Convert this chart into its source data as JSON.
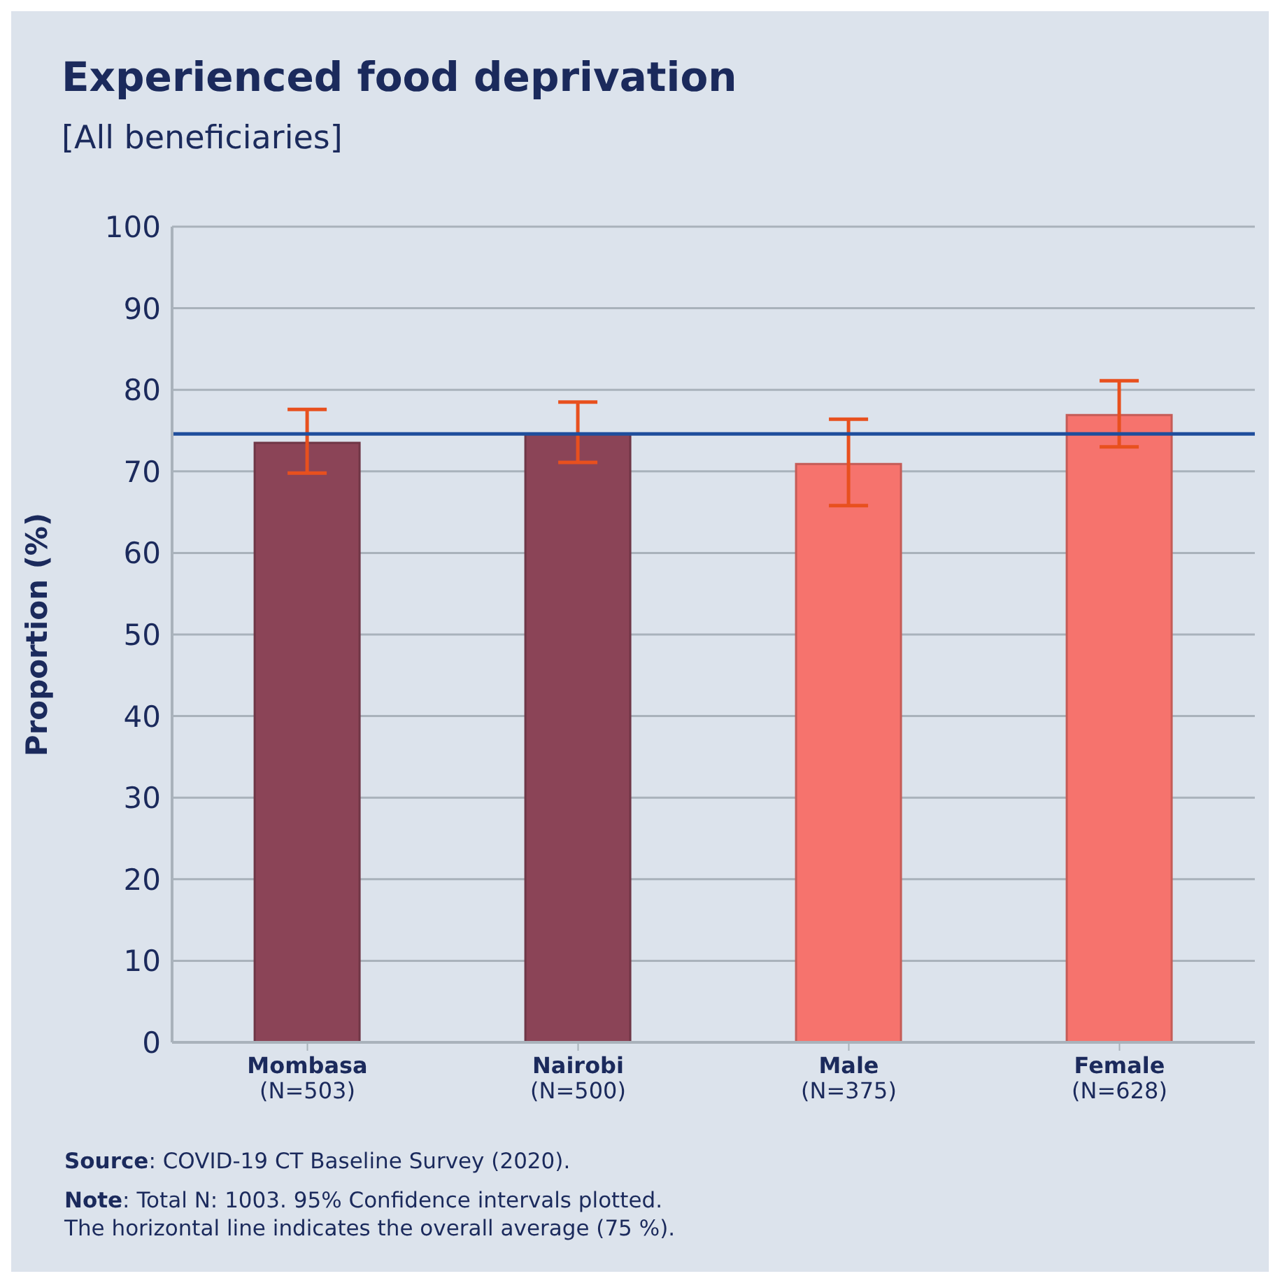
{
  "chart_data": {
    "type": "bar",
    "title": "Experienced food deprivation",
    "subtitle": "[All beneficiaries]",
    "ylabel": "Proportion (%)",
    "categories": [
      "Mombasa\n(N=503)",
      "Nairobi\n(N=500)",
      "Male\n(N=375)",
      "Female\n(N=628)"
    ],
    "values": [
      73.5,
      74.6,
      70.9,
      76.9
    ],
    "colors": [
      "#8b4457",
      "#8b4457",
      "#f6736d",
      "#f6736d"
    ],
    "errors": [
      [
        69.8,
        77.6
      ],
      [
        71.1,
        78.5
      ],
      [
        65.8,
        76.4
      ],
      [
        73.0,
        81.1
      ]
    ],
    "ylim": [
      0,
      100
    ],
    "yticks": [
      0,
      10,
      20,
      30,
      40,
      50,
      60,
      70,
      80,
      90,
      100
    ],
    "grid": "y",
    "legend": false,
    "ref_lines": [
      {
        "axis": "y",
        "value": 74.6,
        "color": "#1f4e9c"
      }
    ],
    "annotations": [
      "Source: COVID-19 CT Baseline Survey (2020).",
      "Note: Total N: 1003. 95% Confidence intervals plotted.\nThe horizontal line indicates the overall average (75 %)."
    ]
  }
}
